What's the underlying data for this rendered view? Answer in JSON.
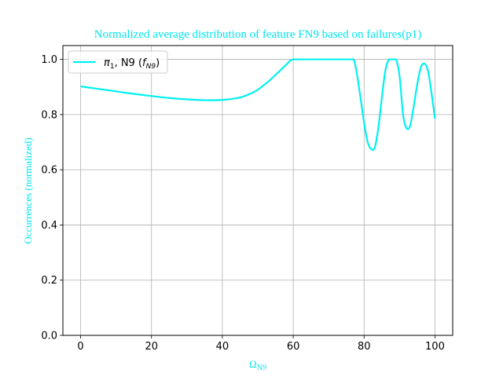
{
  "chart_data": {
    "type": "line",
    "title": "Normalized average distribution of feature FN9 based on failures(p1)",
    "xlabel": "Ω",
    "xlabel_sub": "N9",
    "ylabel": "Occurrences (normalized)",
    "xlim": [
      -5,
      105
    ],
    "ylim": [
      0,
      1.05
    ],
    "x_ticks": [
      0,
      20,
      40,
      60,
      80,
      100
    ],
    "y_ticks": [
      0.0,
      0.2,
      0.4,
      0.6,
      0.8,
      1.0
    ],
    "y_tick_labels": [
      "0.0",
      "0.2",
      "0.4",
      "0.6",
      "0.8",
      "1.0"
    ],
    "grid": true,
    "legend_position": "top-left",
    "series": [
      {
        "name": "π1, N9 (fN9)",
        "legend_parts": {
          "pi": "π",
          "pi_sub": "1",
          "mid": ", N9 (",
          "f": "f",
          "f_sub": "N9",
          "end": ")"
        },
        "color": "#00f0f0",
        "x": [
          0,
          5,
          10,
          15,
          20,
          25,
          30,
          35,
          40,
          45,
          48,
          50,
          53,
          56,
          58,
          60,
          65,
          70,
          75,
          77,
          78,
          79,
          80,
          81,
          82,
          83,
          84,
          85,
          86,
          87,
          88,
          89,
          90,
          91,
          92,
          93,
          94,
          95,
          96,
          97,
          98,
          99,
          100
        ],
        "y": [
          0.902,
          0.893,
          0.884,
          0.875,
          0.867,
          0.86,
          0.855,
          0.852,
          0.853,
          0.862,
          0.876,
          0.89,
          0.92,
          0.956,
          0.98,
          1.0,
          1.0,
          1.0,
          1.0,
          1.0,
          0.945,
          0.86,
          0.77,
          0.7,
          0.675,
          0.68,
          0.75,
          0.86,
          0.96,
          1.0,
          1.0,
          1.0,
          0.94,
          0.8,
          0.75,
          0.76,
          0.83,
          0.91,
          0.97,
          0.985,
          0.96,
          0.88,
          0.785
        ]
      }
    ]
  }
}
